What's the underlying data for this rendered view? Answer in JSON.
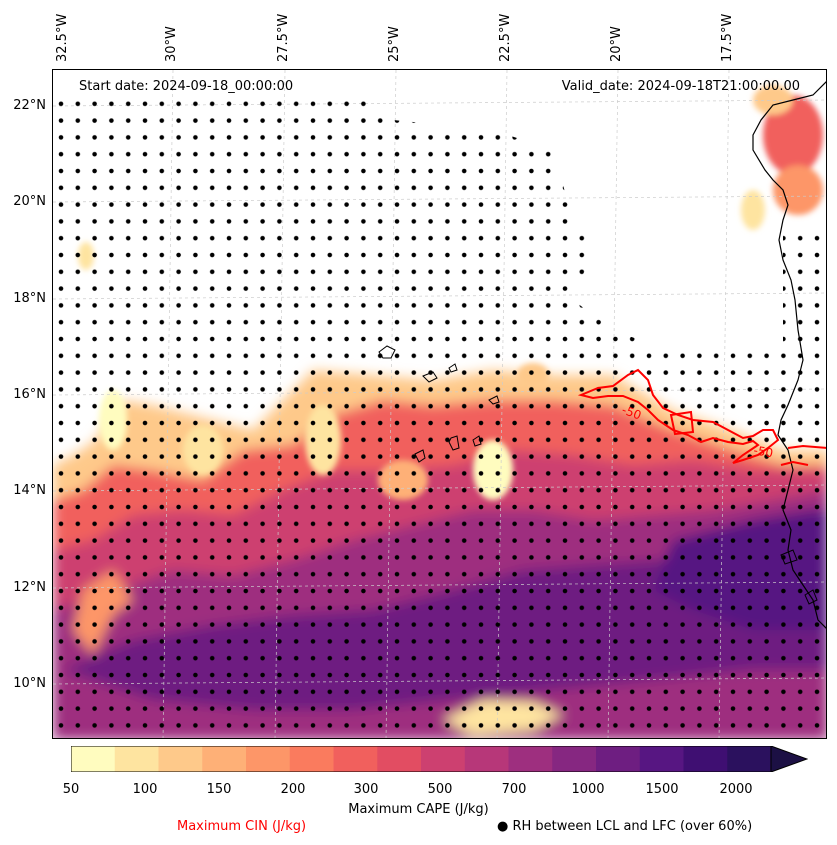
{
  "colors": {
    "cin_contour": "#ff0000",
    "dots": "#000000",
    "coast": "#000000",
    "grid": "#cccccc",
    "cape_scale": [
      "#fffcbf",
      "#fee4a0",
      "#fec98a",
      "#feb077",
      "#fd9668",
      "#fa7b5e",
      "#f1605d",
      "#e24d62",
      "#cd4070",
      "#b73779",
      "#9e2f7f",
      "#862781",
      "#6e1e81",
      "#571682",
      "#3f0f72",
      "#2b115e",
      "#1c1044"
    ]
  },
  "map": {
    "start_date": "Start date: 2024-09-18_00:00:00",
    "valid_date": "Valid_date: 2024-09-18T21:00:00.00",
    "lon_ticks": [
      "32.5°W",
      "30°W",
      "27.5°W",
      "25°W",
      "22.5°W",
      "20°W",
      "17.5°W"
    ],
    "lat_ticks": [
      "22°N",
      "20°N",
      "18°N",
      "16°N",
      "14°N",
      "12°N",
      "10°N"
    ],
    "cin_contour_labels": [
      "-50",
      "-50"
    ]
  },
  "colorbar": {
    "ticks": [
      "50",
      "100",
      "150",
      "200",
      "300",
      "500",
      "700",
      "1000",
      "1500",
      "2000"
    ],
    "label": "Maximum CAPE (J/kg)"
  },
  "legend": {
    "cin_label": "Maximum CIN (J/kg)",
    "rh_marker": "●",
    "rh_label": "RH between LCL and LFC (over 60%)"
  }
}
